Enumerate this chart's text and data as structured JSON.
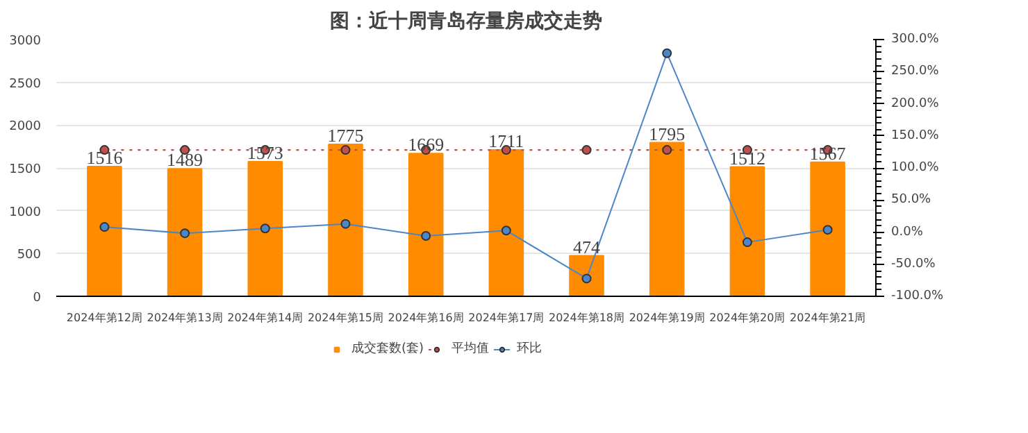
{
  "chart_data": {
    "type": "bar",
    "title": "图：近十周青岛存量房成交走势",
    "categories": [
      "2024年第12周",
      "2024年第13周",
      "2024年第14周",
      "2024年第15周",
      "2024年第16周",
      "2024年第17周",
      "2024年第18周",
      "2024年第19周",
      "2024年第20周",
      "2024年第21周"
    ],
    "series": [
      {
        "name": "成交套数(套)",
        "color": "#ff8c00",
        "values": [
          1516,
          1489,
          1573,
          1775,
          1669,
          1711,
          474,
          1795,
          1512,
          1567
        ],
        "data_labels": true
      },
      {
        "name": "平均值",
        "type": "line",
        "color": "#c0504d",
        "line_style": "dotted",
        "marker": "circle",
        "values": [
          1710,
          1710,
          1710,
          1710,
          1710,
          1710,
          1710,
          1710,
          1710,
          1710
        ]
      },
      {
        "name": "环比",
        "type": "line",
        "axis": "y2",
        "color": "#4a86c8",
        "line_style": "solid",
        "marker": "circle",
        "values": [
          8,
          -1.8,
          5.6,
          12.8,
          -6.0,
          2.5,
          -72.3,
          278.7,
          -15.8,
          3.6
        ]
      }
    ],
    "ylim": [
      0,
      3000
    ],
    "yticks": [
      0,
      500,
      1000,
      1500,
      2000,
      2500,
      3000
    ],
    "y2lim": [
      -100,
      300
    ],
    "y2ticks": [
      {
        "value": -100,
        "label": "-100.0%"
      },
      {
        "value": -50,
        "label": "-50.0%"
      },
      {
        "value": 0,
        "label": "0.0%"
      },
      {
        "value": 50,
        "label": "50.0%"
      },
      {
        "value": 100,
        "label": "100.0%"
      },
      {
        "value": 150,
        "label": "150.0%"
      },
      {
        "value": 200,
        "label": "200.0%"
      },
      {
        "value": 250,
        "label": "250.0%"
      },
      {
        "value": 300,
        "label": "300.0%"
      }
    ],
    "grid": "y",
    "legend": "bottom"
  }
}
